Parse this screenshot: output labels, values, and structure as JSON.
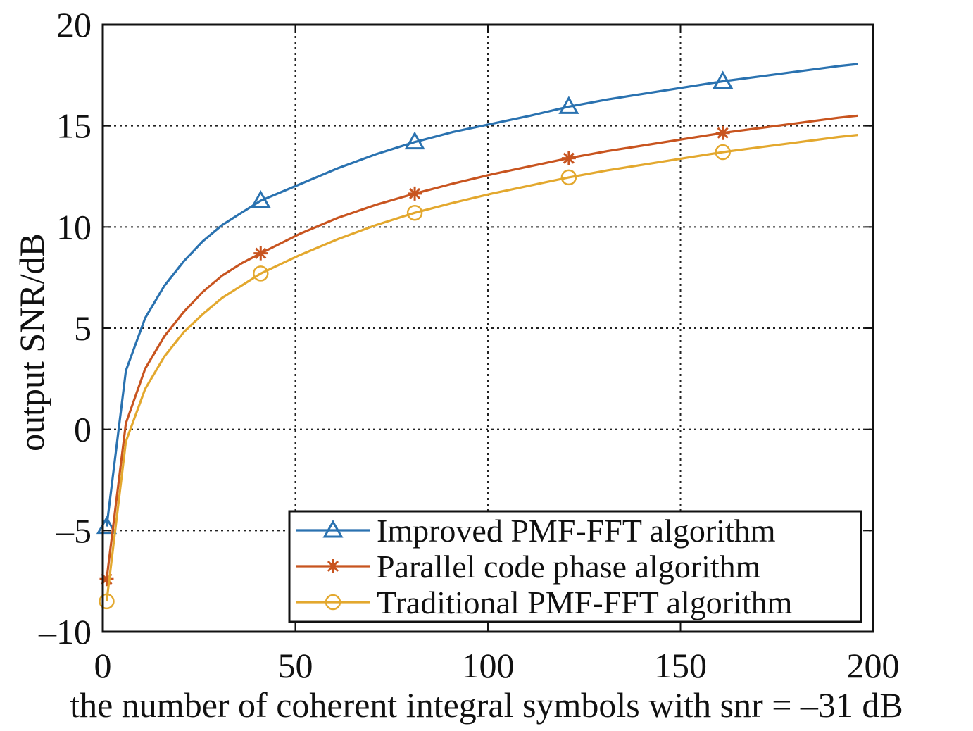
{
  "chart_data": {
    "type": "line",
    "title": "",
    "xlabel": "the number of coherent integral symbols with snr = –31 dB",
    "ylabel": "output SNR/dB",
    "xlim": [
      0,
      200
    ],
    "ylim": [
      -10,
      20
    ],
    "xticks": [
      0,
      50,
      100,
      150,
      200
    ],
    "xtick_labels": [
      "0",
      "50",
      "100",
      "150",
      "200"
    ],
    "yticks": [
      -10,
      -5,
      0,
      5,
      10,
      15,
      20
    ],
    "ytick_labels": [
      "–10",
      "–5",
      "0",
      "5",
      "10",
      "15",
      "20"
    ],
    "grid": true,
    "legend_position": "bottom-right",
    "series": [
      {
        "name": "Improved PMF-FFT algorithm",
        "color": "#2a72b0",
        "marker": "triangle",
        "x": [
          1,
          6,
          11,
          16,
          21,
          26,
          31,
          36,
          41,
          51,
          61,
          71,
          81,
          91,
          101,
          111,
          121,
          131,
          141,
          151,
          161,
          171,
          181,
          191,
          196
        ],
        "y": [
          -4.8,
          2.9,
          5.5,
          7.1,
          8.3,
          9.3,
          10.1,
          10.7,
          11.3,
          12.1,
          12.9,
          13.6,
          14.2,
          14.7,
          15.1,
          15.5,
          15.95,
          16.3,
          16.6,
          16.9,
          17.2,
          17.45,
          17.7,
          17.95,
          18.05
        ],
        "marker_x": [
          1,
          41,
          81,
          121,
          161
        ],
        "marker_y": [
          -4.8,
          11.3,
          14.2,
          15.95,
          17.2
        ]
      },
      {
        "name": "Parallel code phase algorithm",
        "color": "#c8541f",
        "marker": "asterisk",
        "x": [
          1,
          6,
          11,
          16,
          21,
          26,
          31,
          36,
          41,
          51,
          61,
          71,
          81,
          91,
          101,
          111,
          121,
          131,
          141,
          151,
          161,
          171,
          181,
          191,
          196
        ],
        "y": [
          -7.4,
          0.3,
          3.0,
          4.6,
          5.8,
          6.8,
          7.6,
          8.2,
          8.7,
          9.65,
          10.45,
          11.1,
          11.65,
          12.15,
          12.6,
          13.0,
          13.4,
          13.75,
          14.05,
          14.35,
          14.65,
          14.9,
          15.15,
          15.4,
          15.5
        ],
        "marker_x": [
          1,
          41,
          81,
          121,
          161
        ],
        "marker_y": [
          -7.4,
          8.7,
          11.65,
          13.4,
          14.65
        ]
      },
      {
        "name": "Traditional PMF-FFT algorithm",
        "color": "#e3a82e",
        "marker": "circle",
        "x": [
          1,
          6,
          11,
          16,
          21,
          26,
          31,
          36,
          41,
          51,
          61,
          71,
          81,
          91,
          101,
          111,
          121,
          131,
          141,
          151,
          161,
          171,
          181,
          191,
          196
        ],
        "y": [
          -8.5,
          -0.6,
          2.0,
          3.6,
          4.8,
          5.7,
          6.5,
          7.1,
          7.7,
          8.6,
          9.4,
          10.1,
          10.7,
          11.2,
          11.65,
          12.05,
          12.45,
          12.8,
          13.1,
          13.4,
          13.7,
          13.95,
          14.2,
          14.45,
          14.55
        ],
        "marker_x": [
          1,
          41,
          81,
          121,
          161
        ],
        "marker_y": [
          -8.5,
          7.7,
          10.7,
          12.45,
          13.7
        ]
      }
    ]
  }
}
